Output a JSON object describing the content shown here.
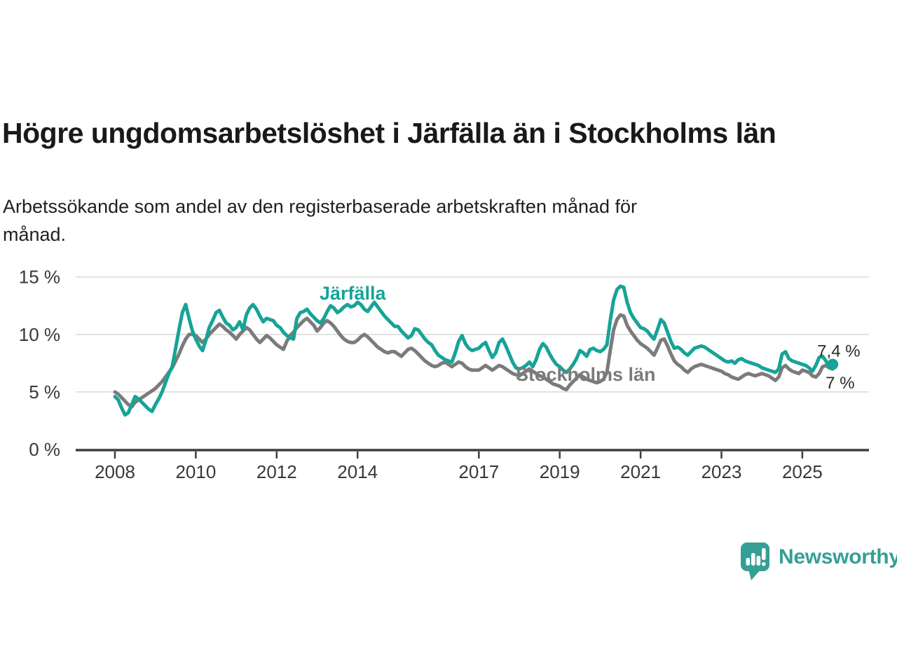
{
  "header": {
    "title": "Högre ungdomsarbetslöshet i Järfälla än i Stockholms län",
    "subtitle_lines": [
      "Arbetssökande som andel av den registerbaserade arbetskraften månad för",
      "månad."
    ]
  },
  "chart_data": {
    "type": "line",
    "title": "Högre ungdomsarbetslöshet i Järfälla än i Stockholms län",
    "subtitle": "Arbetssökande som andel av den registerbaserade arbetskraften månad för månad.",
    "x_unit": "month",
    "x_start": "2008-01",
    "x_end": "2025-10",
    "xlabel": "",
    "ylabel": "",
    "ylim": [
      0,
      15.5
    ],
    "grid": "horizontal-only",
    "legend": "inline-series-labels",
    "yticks": [
      {
        "value": 0,
        "label": "0 %"
      },
      {
        "value": 5,
        "label": "5 %"
      },
      {
        "value": 10,
        "label": "10 %"
      },
      {
        "value": 15,
        "label": "15 %"
      }
    ],
    "xticks": [
      {
        "month_index": 0,
        "label": "2008"
      },
      {
        "month_index": 24,
        "label": "2010"
      },
      {
        "month_index": 48,
        "label": "2012"
      },
      {
        "month_index": 72,
        "label": "2014"
      },
      {
        "month_index": 108,
        "label": "2017"
      },
      {
        "month_index": 132,
        "label": "2019"
      },
      {
        "month_index": 156,
        "label": "2021"
      },
      {
        "month_index": 180,
        "label": "2023"
      },
      {
        "month_index": 204,
        "label": "2025"
      }
    ],
    "series": [
      {
        "name": "Järfälla",
        "label_text": "Järfälla",
        "end_label": "7,4 %",
        "end_dot": true,
        "color": "#17a398",
        "values": [
          4.6,
          4.3,
          3.6,
          3.0,
          3.2,
          3.9,
          4.6,
          4.4,
          4.1,
          3.8,
          3.5,
          3.3,
          3.9,
          4.4,
          5.0,
          5.8,
          6.6,
          7.2,
          8.8,
          10.4,
          11.9,
          12.6,
          11.4,
          10.3,
          9.6,
          9.0,
          8.6,
          9.5,
          10.6,
          11.2,
          11.9,
          12.1,
          11.5,
          11.0,
          10.8,
          10.4,
          10.6,
          11.1,
          10.4,
          11.7,
          12.3,
          12.6,
          12.2,
          11.6,
          11.1,
          11.4,
          11.3,
          11.2,
          10.8,
          10.6,
          10.2,
          9.9,
          9.7,
          9.6,
          11.4,
          11.9,
          12.0,
          12.2,
          11.8,
          11.5,
          11.2,
          11.0,
          11.4,
          12.0,
          12.5,
          12.3,
          11.9,
          12.1,
          12.4,
          12.6,
          12.4,
          12.5,
          12.8,
          12.6,
          12.2,
          12.0,
          12.4,
          12.8,
          12.4,
          12.0,
          11.6,
          11.3,
          11.0,
          10.7,
          10.7,
          10.3,
          10.0,
          9.7,
          9.9,
          10.5,
          10.4,
          10.0,
          9.6,
          9.3,
          9.1,
          8.6,
          8.2,
          8.0,
          7.8,
          7.7,
          7.6,
          8.4,
          9.4,
          9.9,
          9.2,
          8.8,
          8.6,
          8.7,
          8.8,
          9.1,
          9.3,
          8.6,
          8.0,
          8.4,
          9.3,
          9.6,
          9.0,
          8.3,
          7.6,
          7.1,
          7.0,
          7.1,
          7.3,
          7.6,
          7.2,
          7.8,
          8.7,
          9.2,
          8.9,
          8.3,
          7.8,
          7.4,
          7.2,
          6.9,
          6.7,
          7.0,
          7.4,
          7.9,
          8.6,
          8.4,
          8.1,
          8.7,
          8.8,
          8.6,
          8.5,
          8.7,
          9.1,
          11.2,
          13.0,
          13.9,
          14.2,
          14.1,
          12.8,
          11.9,
          11.4,
          11.0,
          10.6,
          10.5,
          10.3,
          9.9,
          9.6,
          10.4,
          11.3,
          11.0,
          10.2,
          9.4,
          8.8,
          8.9,
          8.7,
          8.4,
          8.2,
          8.5,
          8.8,
          8.9,
          9.0,
          8.9,
          8.7,
          8.5,
          8.3,
          8.1,
          7.9,
          7.7,
          7.6,
          7.7,
          7.5,
          7.8,
          7.9,
          7.7,
          7.6,
          7.5,
          7.4,
          7.3,
          7.1,
          7.0,
          6.9,
          6.8,
          6.7,
          7.0,
          8.3,
          8.5,
          7.9,
          7.7,
          7.6,
          7.5,
          7.4,
          7.3,
          7.1,
          6.8,
          7.3,
          8.0,
          8.1,
          7.7,
          7.1,
          7.4
        ]
      },
      {
        "name": "Stockholms län",
        "label_text": "Stockholms län",
        "end_label": "7 %",
        "end_dot": false,
        "color": "#7b7b7b",
        "values": [
          5.0,
          4.8,
          4.5,
          4.2,
          3.9,
          3.7,
          4.1,
          4.3,
          4.5,
          4.7,
          4.9,
          5.1,
          5.3,
          5.6,
          5.9,
          6.3,
          6.7,
          7.1,
          7.7,
          8.3,
          9.0,
          9.6,
          10.0,
          10.0,
          9.9,
          9.6,
          9.3,
          9.6,
          10.0,
          10.3,
          10.6,
          10.9,
          10.7,
          10.4,
          10.2,
          9.9,
          9.6,
          10.0,
          10.3,
          10.6,
          10.4,
          10.0,
          9.6,
          9.3,
          9.6,
          9.9,
          9.7,
          9.4,
          9.1,
          8.9,
          8.7,
          9.4,
          9.9,
          10.2,
          10.6,
          10.9,
          11.2,
          11.4,
          11.1,
          10.8,
          10.3,
          10.6,
          11.0,
          11.2,
          11.0,
          10.7,
          10.3,
          9.9,
          9.6,
          9.4,
          9.3,
          9.3,
          9.5,
          9.8,
          10.0,
          9.8,
          9.5,
          9.2,
          8.9,
          8.7,
          8.5,
          8.4,
          8.5,
          8.5,
          8.3,
          8.1,
          8.4,
          8.7,
          8.8,
          8.6,
          8.3,
          8.0,
          7.7,
          7.5,
          7.3,
          7.2,
          7.3,
          7.5,
          7.6,
          7.4,
          7.2,
          7.4,
          7.6,
          7.5,
          7.2,
          7.0,
          6.9,
          6.9,
          6.9,
          7.1,
          7.3,
          7.1,
          6.9,
          7.1,
          7.3,
          7.2,
          7.0,
          6.8,
          6.6,
          6.5,
          6.4,
          6.6,
          6.8,
          7.0,
          6.8,
          6.6,
          6.4,
          6.3,
          6.1,
          5.9,
          5.7,
          5.6,
          5.5,
          5.3,
          5.2,
          5.6,
          5.9,
          6.2,
          6.5,
          6.3,
          6.1,
          6.0,
          5.9,
          5.8,
          5.9,
          6.1,
          6.7,
          8.6,
          10.4,
          11.3,
          11.7,
          11.6,
          10.8,
          10.3,
          9.9,
          9.5,
          9.2,
          9.0,
          8.8,
          8.5,
          8.2,
          8.8,
          9.5,
          9.6,
          9.0,
          8.3,
          7.7,
          7.4,
          7.2,
          6.9,
          6.7,
          7.0,
          7.2,
          7.3,
          7.4,
          7.3,
          7.2,
          7.1,
          7.0,
          6.9,
          6.8,
          6.6,
          6.5,
          6.3,
          6.2,
          6.1,
          6.3,
          6.5,
          6.6,
          6.5,
          6.4,
          6.5,
          6.6,
          6.5,
          6.4,
          6.2,
          6.0,
          6.3,
          7.1,
          7.3,
          7.0,
          6.8,
          6.7,
          6.6,
          6.9,
          6.8,
          6.7,
          6.4,
          6.3,
          6.6,
          7.2,
          7.3,
          7.1,
          7.0
        ]
      }
    ]
  },
  "style_colors": {
    "jarfalla_line": "#17a398",
    "stockholm_line": "#7b7b7b",
    "grid": "#d9d9d9",
    "axis": "#3e3e3e",
    "axis_text": "#383838",
    "value_label_text": "#2b2b2b"
  },
  "branding": {
    "logo_text": "Newsworthy",
    "logo_color": "#369f95"
  }
}
